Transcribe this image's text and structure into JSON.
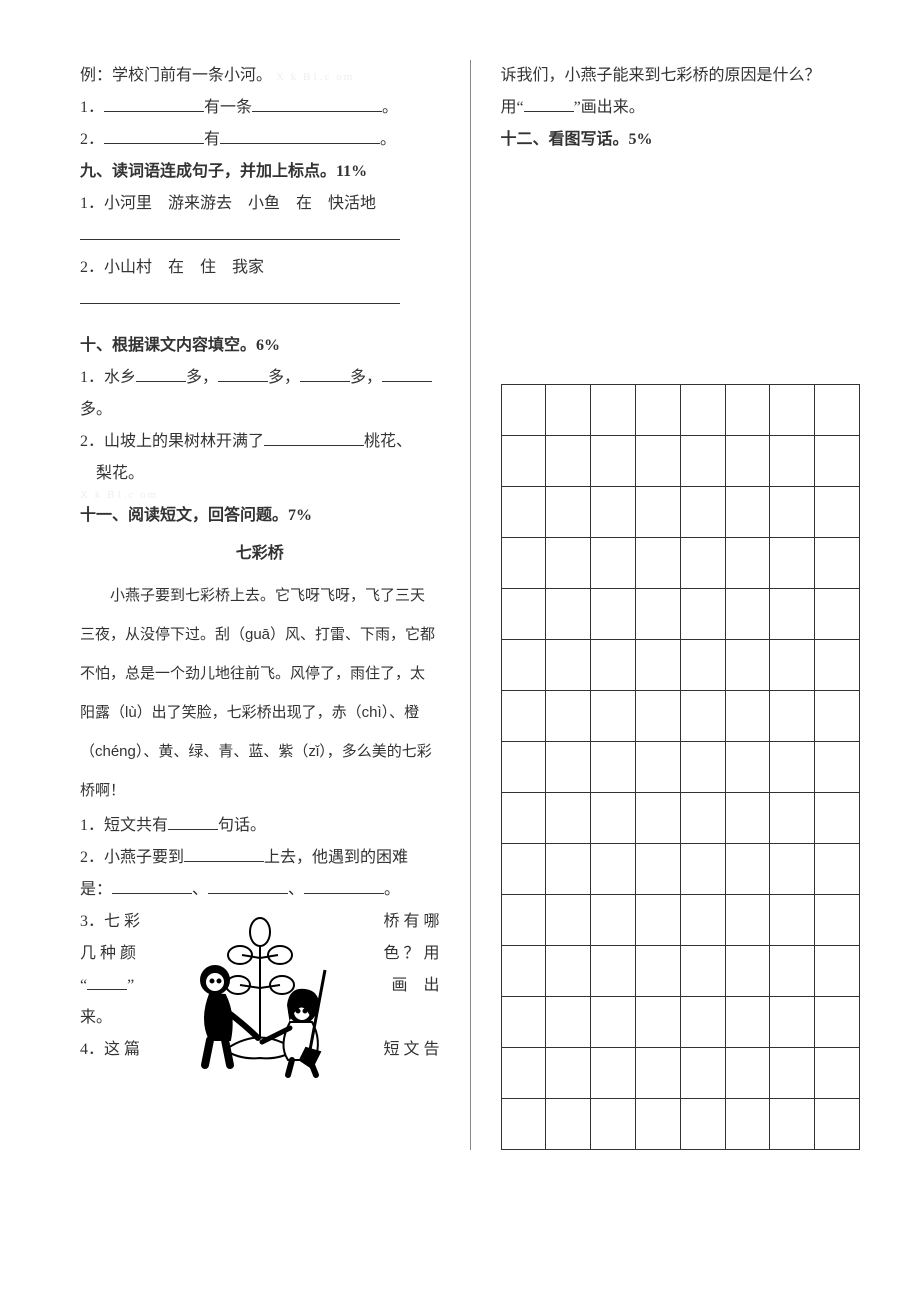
{
  "left": {
    "example": "例：学校门前有一条小河。",
    "watermark": "X k B1.c om",
    "ex1_a": "1．",
    "ex1_mid": "有一条",
    "ex1_end": "。",
    "ex2_a": "2．",
    "ex2_mid": "有",
    "ex2_end": "。",
    "sec9": "九、读词语连成句子，并加上标点。11%",
    "sec9_q1": "1．小河里　游来游去　小鱼　在　快活地",
    "sec9_q2": "2．小山村　在　住　我家",
    "sec10": "十、根据课文内容填空。6%",
    "sec10_q1a": "1．水乡",
    "sec10_q1b": "多，",
    "sec10_q1c": "多，",
    "sec10_q1d": "多，",
    "sec10_q1e": "多。",
    "sec10_q2a": "2．山坡上的果树林开满了",
    "sec10_q2b": "桃花、",
    "sec10_q2c": "梨花。",
    "watermark2": "X k B1.c om",
    "sec11": "十一、阅读短文，回答问题。7%",
    "story_title": "七彩桥",
    "story_body": "　　小燕子要到七彩桥上去。它飞呀飞呀，飞了三天三夜，从没停下过。刮（guā）风、打雷、下雨，它都不怕，总是一个劲儿地往前飞。风停了，雨住了，太阳露（lù）出了笑脸，七彩桥出现了，赤（chì）、橙（chéng）、黄、绿、青、蓝、紫（zǐ），多么美的七彩桥啊！",
    "q1a": "1．短文共有",
    "q1b": "句话。",
    "q2a": "2．小燕子要到",
    "q2b": "上去，他遇到的困难",
    "q2c": "是：",
    "q2d": "、",
    "q2e": "、",
    "q2f": "。",
    "q3_l1": "3．七 彩",
    "q3_r1": "桥 有 哪",
    "q3_l2": "几 种 颜",
    "q3_r2": "色 ？ 用",
    "q3_l3": "“",
    "q3_l3b": "”",
    "q3_r3": "画　出",
    "q3_l4": "来。",
    "q4_l": "4．这 篇",
    "q4_r": "短 文 告"
  },
  "right": {
    "cont1": "诉我们，小燕子能来到七彩桥的原因是什么？",
    "cont2a": "用“",
    "cont2b": "”画出来。",
    "sec12": "十二、看图写话。5%",
    "grid": {
      "rows": 15,
      "cols": 8
    }
  },
  "style": {
    "text_color": "#333333",
    "watermark_color": "#eeeeee",
    "border_color": "#333333"
  }
}
